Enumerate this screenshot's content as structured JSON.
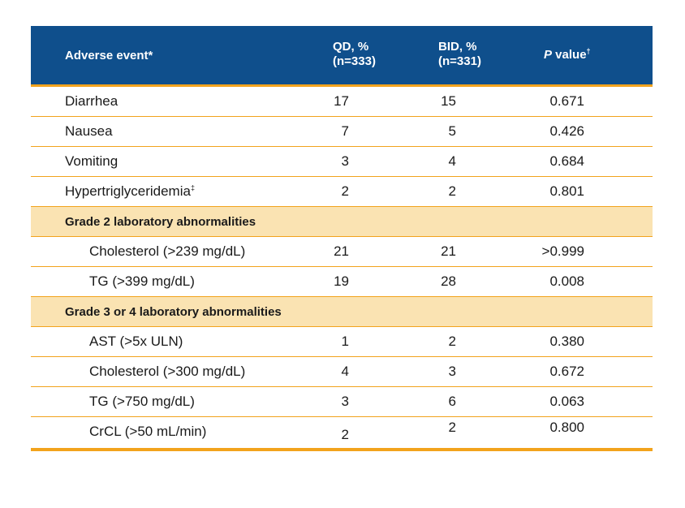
{
  "header": {
    "adverse_event": "Adverse event*",
    "qd_line1": "QD, %",
    "qd_line2": "(n=333)",
    "bid_line1": "BID, %",
    "bid_line2": "(n=331)",
    "p_italic": "P",
    "p_rest": " value",
    "p_mark": "†"
  },
  "rows": [
    {
      "label": "Diarrhea",
      "qd": "17",
      "bid": "15",
      "p": "0.671"
    },
    {
      "label": "Nausea",
      "qd": "7",
      "bid": "5",
      "p": "0.426"
    },
    {
      "label": "Vomiting",
      "qd": "3",
      "bid": "4",
      "p": "0.684"
    },
    {
      "label": "Hypertriglyceridemia",
      "mark": "‡",
      "qd": "2",
      "bid": "2",
      "p": "0.801"
    }
  ],
  "section1": {
    "title": "Grade 2 laboratory abnormalities",
    "rows": [
      {
        "label": "Cholesterol (>239 mg/dL)",
        "qd": "21",
        "bid": "21",
        "p": ">0.999"
      },
      {
        "label": "TG (>399 mg/dL)",
        "qd": "19",
        "bid": "28",
        "p": "0.008"
      }
    ]
  },
  "section2": {
    "title": "Grade 3 or 4 laboratory abnormalities",
    "rows": [
      {
        "label": "AST (>5x ULN)",
        "qd": "1",
        "bid": "2",
        "p": "0.380"
      },
      {
        "label": "Cholesterol (>300 mg/dL)",
        "qd": "4",
        "bid": "3",
        "p": "0.672"
      },
      {
        "label": "TG (>750 mg/dL)",
        "qd": "3",
        "bid": "6",
        "p": "0.063"
      },
      {
        "label": "CrCL (>50 mL/min)",
        "qd": "2",
        "bid": "2",
        "p": "0.800"
      }
    ]
  }
}
